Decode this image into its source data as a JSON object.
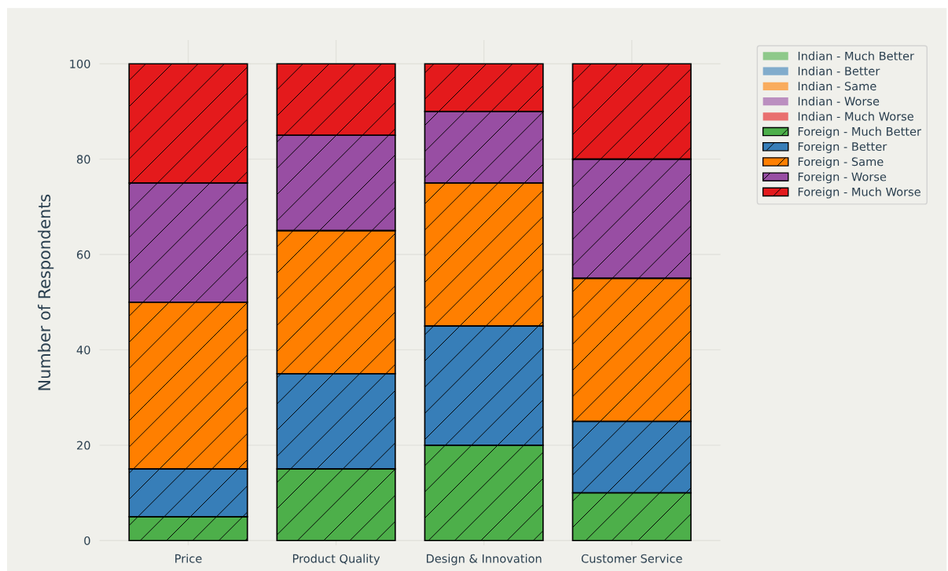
{
  "chart_data": {
    "type": "bar",
    "stacked": true,
    "ylabel": "Number of Respondents",
    "categories": [
      "Price",
      "Product Quality",
      "Design & Innovation",
      "Customer Service"
    ],
    "series": [
      {
        "name": "Indian - Much Better",
        "color": "#4daf4a",
        "values": [
          null,
          null,
          null,
          null
        ]
      },
      {
        "name": "Indian - Better",
        "color": "#377eb8",
        "values": [
          null,
          null,
          null,
          null
        ]
      },
      {
        "name": "Indian - Same",
        "color": "#ff7f00",
        "values": [
          null,
          null,
          null,
          null
        ]
      },
      {
        "name": "Indian - Worse",
        "color": "#984ea3",
        "values": [
          null,
          null,
          null,
          null
        ]
      },
      {
        "name": "Indian - Much Worse",
        "color": "#e41a1c",
        "values": [
          null,
          null,
          null,
          null
        ]
      },
      {
        "name": "Foreign - Much Better",
        "color": "#4daf4a",
        "values": [
          5,
          15,
          20,
          10
        ]
      },
      {
        "name": "Foreign - Better",
        "color": "#377eb8",
        "values": [
          10,
          20,
          25,
          15
        ]
      },
      {
        "name": "Foreign - Same",
        "color": "#ff7f00",
        "values": [
          35,
          30,
          30,
          30
        ]
      },
      {
        "name": "Foreign - Worse",
        "color": "#984ea3",
        "values": [
          25,
          20,
          15,
          25
        ]
      },
      {
        "name": "Foreign - Much Worse",
        "color": "#e41a1c",
        "values": [
          25,
          15,
          10,
          20
        ]
      }
    ],
    "ylim": [
      -1,
      105
    ],
    "yticks": [
      0,
      20,
      40,
      60,
      80,
      100
    ],
    "grid": true,
    "legend": "top right"
  }
}
